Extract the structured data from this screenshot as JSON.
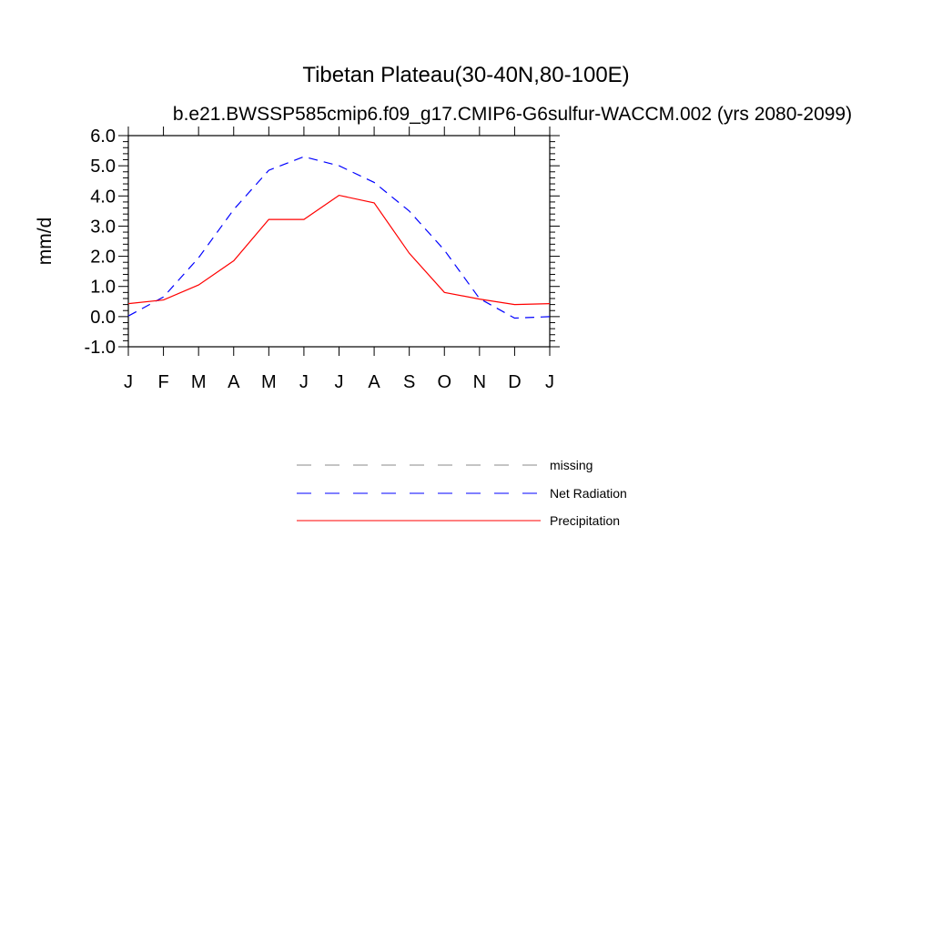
{
  "chart_data": {
    "type": "line",
    "title": "Tibetan Plateau(30-40N,80-100E)",
    "subtitle": "b.e21.BWSSP585cmip6.f09_g17.CMIP6-G6sulfur-WACCM.002 (yrs 2080-2099)",
    "xlabel": "",
    "ylabel": "mm/d",
    "categories": [
      "J",
      "F",
      "M",
      "A",
      "M",
      "J",
      "J",
      "A",
      "S",
      "O",
      "N",
      "D",
      "J"
    ],
    "ylim": [
      -1.0,
      6.0
    ],
    "yticks": [
      "-1.0",
      "0.0",
      "1.0",
      "2.0",
      "3.0",
      "4.0",
      "5.0",
      "6.0"
    ],
    "yminor_step": 0.2,
    "grid": false,
    "legend_position": "bottom",
    "series": [
      {
        "name": "Net Radiation",
        "color": "#0000ff",
        "dash": "dashed",
        "values": [
          0.02,
          0.65,
          1.95,
          3.55,
          4.85,
          5.3,
          5.0,
          4.45,
          3.5,
          2.2,
          0.6,
          -0.05,
          0.0
        ]
      },
      {
        "name": "Precipitation",
        "color": "#ff0000",
        "dash": "solid",
        "values": [
          0.43,
          0.55,
          1.05,
          1.85,
          3.22,
          3.22,
          4.02,
          3.77,
          2.1,
          0.8,
          0.58,
          0.4,
          0.43
        ]
      }
    ],
    "legend": [
      {
        "label": "missing",
        "color": "#888888",
        "dash": "dashed"
      },
      {
        "label": "Net Radiation",
        "color": "#0000ff",
        "dash": "dashed"
      },
      {
        "label": "Precipitation",
        "color": "#ff0000",
        "dash": "solid"
      }
    ]
  }
}
